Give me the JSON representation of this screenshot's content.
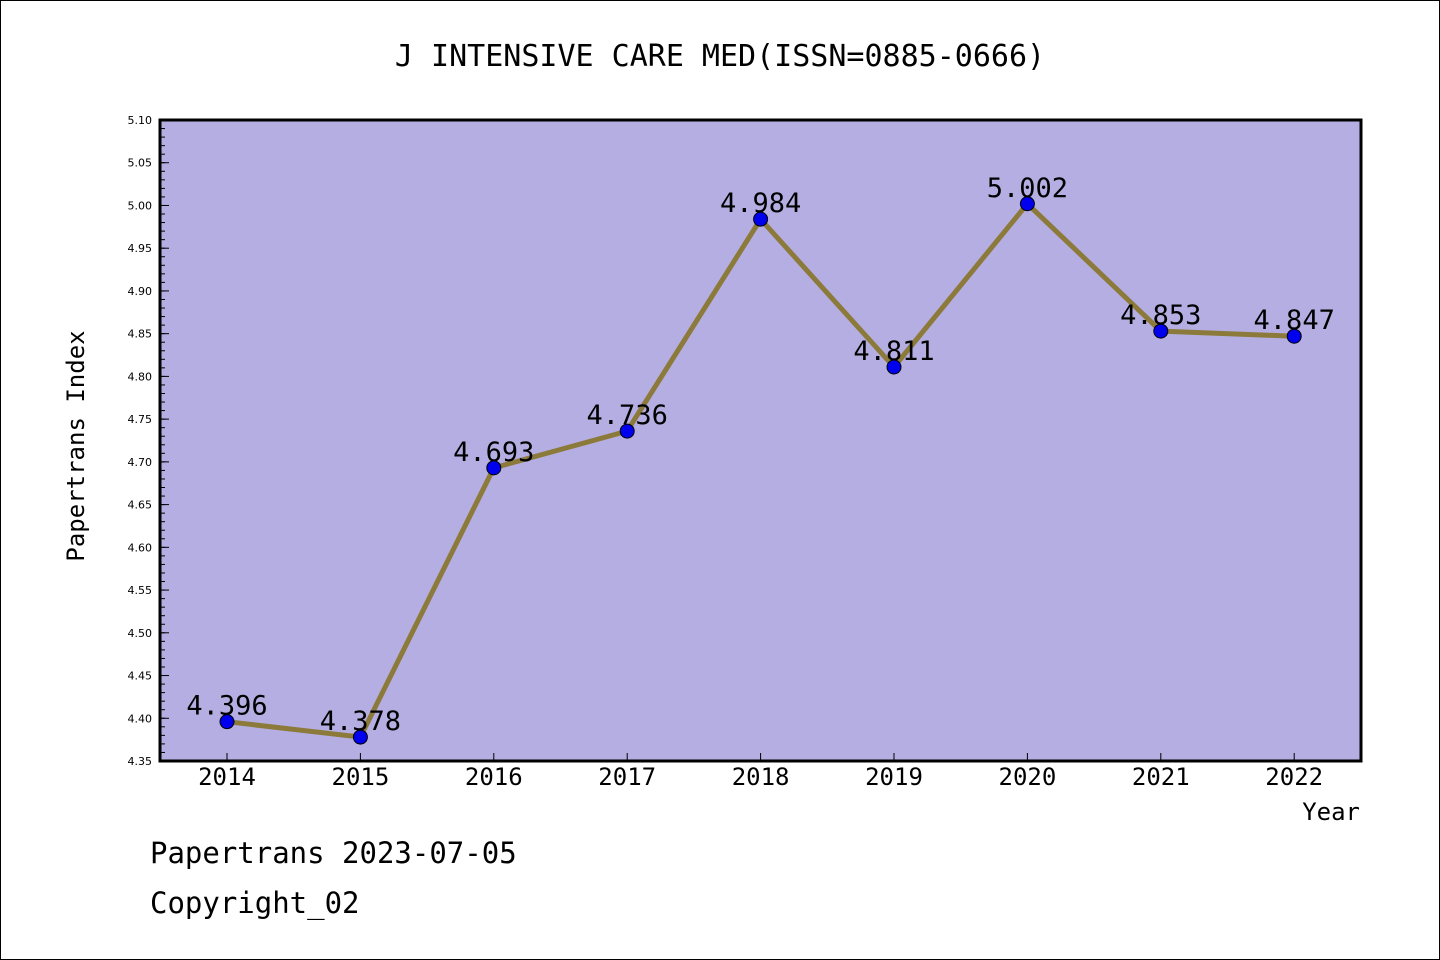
{
  "chart_data": {
    "type": "line",
    "title": "J INTENSIVE CARE MED(ISSN=0885-0666)",
    "xlabel": "Year",
    "ylabel": "Papertrans Index",
    "categories": [
      "2014",
      "2015",
      "2016",
      "2017",
      "2018",
      "2019",
      "2020",
      "2021",
      "2022"
    ],
    "values": [
      4.396,
      4.378,
      4.693,
      4.736,
      4.984,
      4.811,
      5.002,
      4.853,
      4.847
    ],
    "data_labels": [
      "4.396",
      "4.378",
      "4.693",
      "4.736",
      "4.984",
      "4.811",
      "5.002",
      "4.853",
      "4.847"
    ],
    "ylim": [
      4.35,
      5.1
    ],
    "yticks": [
      "4.35",
      "4.40",
      "4.45",
      "4.50",
      "4.55",
      "4.60",
      "4.65",
      "4.70",
      "4.75",
      "4.80",
      "4.85",
      "4.90",
      "4.95",
      "5.00",
      "5.05",
      "5.10"
    ],
    "grid": false,
    "colors": {
      "plot_background": "#b5aee2",
      "line": "#8c7a3a",
      "marker": "#0000ee"
    }
  },
  "footer": {
    "line1": "Papertrans 2023-07-05",
    "line2": "Copyright_02"
  }
}
